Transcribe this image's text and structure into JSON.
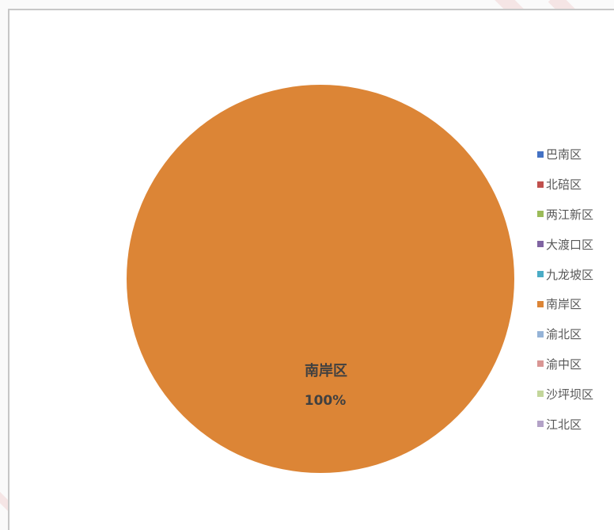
{
  "chart_data": {
    "type": "pie",
    "title": "",
    "categories": [
      "巴南区",
      "北碚区",
      "两江新区",
      "大渡口区",
      "九龙坡区",
      "南岸区",
      "渝北区",
      "渝中区",
      "沙坪坝区",
      "江北区"
    ],
    "values": [
      0,
      0,
      0,
      0,
      0,
      100,
      0,
      0,
      0,
      0
    ],
    "colors": [
      "#4472c4",
      "#c0504d",
      "#9bbb59",
      "#8064a2",
      "#4bacc6",
      "#dc8536",
      "#95b3d7",
      "#d99694",
      "#c3d69b",
      "#b3a2c7"
    ],
    "data_label": {
      "category": "南岸区",
      "percent": "100%"
    },
    "legend_position": "right"
  }
}
